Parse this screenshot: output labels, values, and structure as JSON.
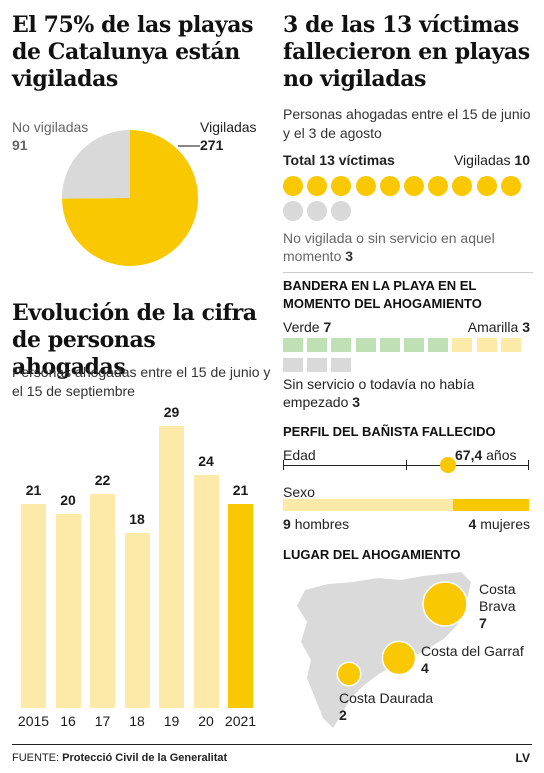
{
  "colors": {
    "yellow": "#f9c800",
    "pale_yellow": "#fde9a8",
    "grey": "#d9d9d9",
    "green": "#bfe0b5",
    "map_grey": "#dadada"
  },
  "beaches": {
    "title": "El 75% de las playas de Catalunya están vigiladas",
    "not_monitored_label": "No vigiladas",
    "monitored_label": "Vigiladas"
  },
  "victims": {
    "title": "3 de las 13 víctimas fallecieron en playas no vigiladas",
    "subtitle": "Personas ahogadas entre el 15 de junio y el 3 de agosto",
    "total_label": "Total 13 víctimas",
    "monitored_label": "Vigiladas",
    "monitored_value": "10",
    "unmonitored_label": "No vigilada o sin servicio en aquel momento",
    "unmonitored_value": "3"
  },
  "flag": {
    "title": "BANDERA EN LA PLAYA EN EL MOMENTO DEL AHOGAMIENTO",
    "green_label": "Verde",
    "green_value": "7",
    "yellow_label": "Amarilla",
    "yellow_value": "3",
    "none_label": "Sin servicio o todavía no había empezado",
    "none_value": "3"
  },
  "profile": {
    "title": "PERFIL DEL BAÑISTA FALLECIDO",
    "age_label": "Edad",
    "age_value": "67,4",
    "age_unit": "años",
    "sex_label": "Sexo",
    "men_value": "9",
    "men_label": "hombres",
    "women_value": "4",
    "women_label": "mujeres"
  },
  "place": {
    "title": "LUGAR DEL AHOGAMIENTO",
    "brava_name_1": "Costa",
    "brava_name_2": "Brava",
    "brava_value": "7",
    "garraf_name": "Costa del Garraf",
    "garraf_value": "4",
    "daurada_name": "Costa Daurada",
    "daurada_value": "2"
  },
  "evolution": {
    "title": "Evolución de la cifra de personas ahogadas",
    "subtitle": "Personas ahogadas entre el 15 de junio y el 15 de septiembre"
  },
  "footer": {
    "source_label": "FUENTE:",
    "source": "Protecció Civil de la Generalitat",
    "brand": "LV"
  },
  "chart_data": [
    {
      "type": "pie",
      "title": "El 75% de las playas de Catalunya están vigiladas",
      "labels": [
        "Vigiladas",
        "No vigiladas"
      ],
      "values": [
        271,
        91
      ]
    },
    {
      "type": "bar",
      "title": "Evolución de la cifra de personas ahogadas",
      "categories": [
        "2015",
        "16",
        "17",
        "18",
        "19",
        "20",
        "2021"
      ],
      "values": [
        21,
        20,
        22,
        18,
        29,
        24,
        21
      ],
      "ylim": [
        0,
        29
      ]
    },
    {
      "type": "bar",
      "title": "3 de las 13 víctimas fallecieron en playas no vigiladas",
      "categories": [
        "Vigiladas",
        "No vigilada o sin servicio en aquel momento"
      ],
      "values": [
        10,
        3
      ]
    },
    {
      "type": "bar",
      "title": "BANDERA EN LA PLAYA EN EL MOMENTO DEL AHOGAMIENTO",
      "categories": [
        "Verde",
        "Amarilla",
        "Sin servicio o todavía no había empezado"
      ],
      "values": [
        7,
        3,
        3
      ]
    },
    {
      "type": "bar",
      "title": "PERFIL DEL BAÑISTA FALLECIDO",
      "categories": [
        "hombres",
        "mujeres"
      ],
      "values": [
        9,
        4
      ]
    },
    {
      "type": "scatter",
      "title": "LUGAR DEL AHOGAMIENTO",
      "categories": [
        "Costa Brava",
        "Costa del Garraf",
        "Costa Daurada"
      ],
      "values": [
        7,
        4,
        2
      ]
    }
  ]
}
